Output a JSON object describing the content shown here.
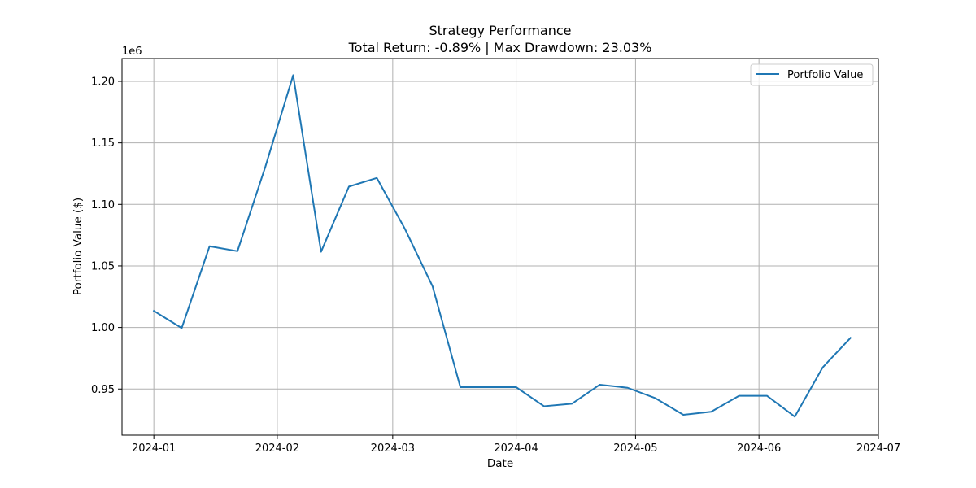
{
  "chart_data": {
    "type": "line",
    "title": "Strategy Performance",
    "subtitle": "Total Return: -0.89% | Max Drawdown: 23.03%",
    "xlabel": "Date",
    "ylabel": "Portfolio Value ($)",
    "y_offset_label": "1e6",
    "xlim": [
      "2023-12-24",
      "2024-07-01"
    ],
    "ylim": [
      0.9125,
      1.2185
    ],
    "x_ticks": [
      "2024-01-01",
      "2024-02-01",
      "2024-03-01",
      "2024-04-01",
      "2024-05-01",
      "2024-06-01",
      "2024-07-01"
    ],
    "x_tick_labels": [
      "2024-01",
      "2024-02",
      "2024-03",
      "2024-04",
      "2024-05",
      "2024-06",
      "2024-07"
    ],
    "y_ticks": [
      0.95,
      1.0,
      1.05,
      1.1,
      1.15,
      1.2
    ],
    "y_tick_labels": [
      "0.95",
      "1.00",
      "1.05",
      "1.10",
      "1.15",
      "1.20"
    ],
    "grid": true,
    "legend_position": "top-right",
    "series": [
      {
        "name": "Portfolio Value",
        "color": "#1f77b4",
        "x": [
          "2024-01-01",
          "2024-01-08",
          "2024-01-15",
          "2024-01-22",
          "2024-01-29",
          "2024-02-05",
          "2024-02-12",
          "2024-02-19",
          "2024-02-26",
          "2024-03-04",
          "2024-03-11",
          "2024-03-18",
          "2024-03-25",
          "2024-04-01",
          "2024-04-08",
          "2024-04-15",
          "2024-04-22",
          "2024-04-29",
          "2024-05-06",
          "2024-05-13",
          "2024-05-20",
          "2024-05-27",
          "2024-06-03",
          "2024-06-10",
          "2024-06-17",
          "2024-06-24"
        ],
        "y": [
          1.0135,
          0.9995,
          1.066,
          1.062,
          1.1305,
          1.205,
          1.0615,
          1.1145,
          1.1215,
          1.0805,
          1.0335,
          0.9515,
          0.9515,
          0.9515,
          0.936,
          0.938,
          0.9535,
          0.951,
          0.9425,
          0.929,
          0.9315,
          0.9445,
          0.9445,
          0.9275,
          0.9675,
          0.9915
        ]
      }
    ]
  }
}
